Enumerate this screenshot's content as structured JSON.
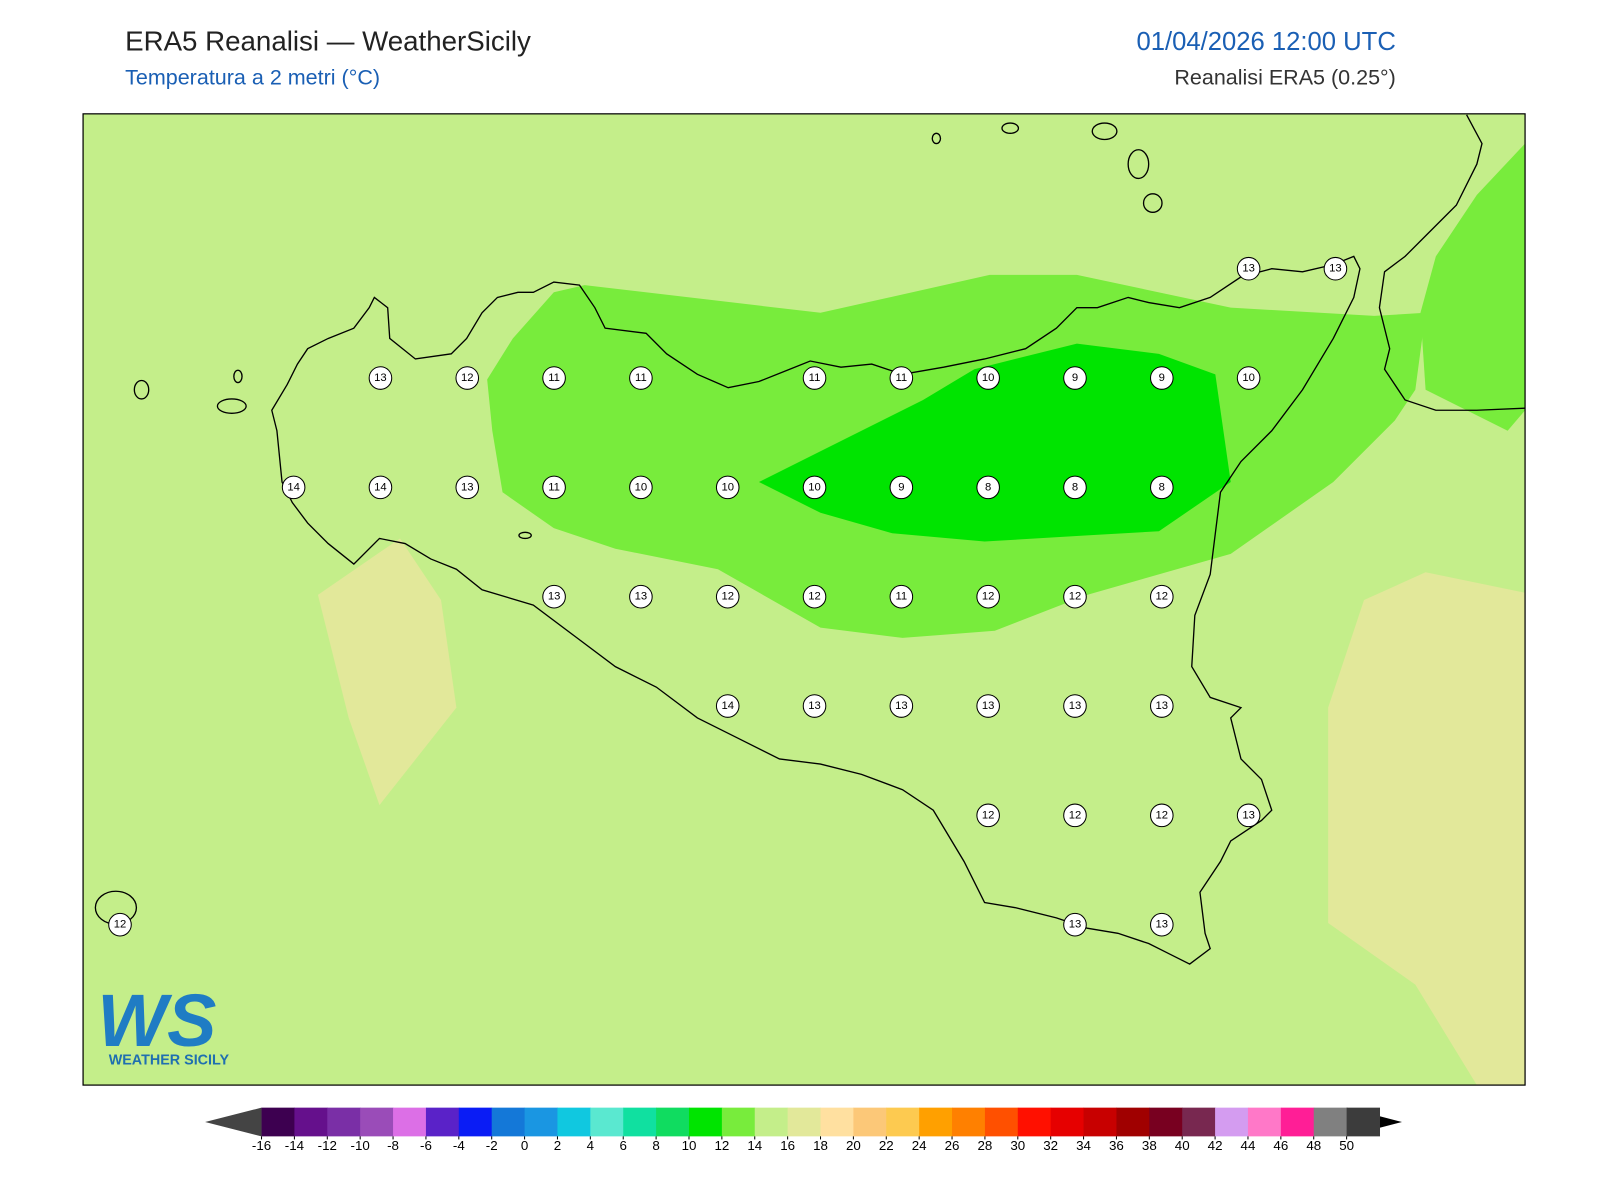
{
  "header": {
    "title": "ERA5 Reanalisi — WeatherSicily",
    "subtitle": "Temperatura a 2 metri (°C)",
    "valid_time": "01/04/2026 12:00 UTC",
    "source": "Reanalisi ERA5 (0.25°)"
  },
  "map": {
    "station_grid": [
      [
        null,
        null,
        null,
        null,
        null,
        null,
        null,
        null,
        null,
        null,
        null,
        null,
        null,
        13,
        13
      ],
      [
        null,
        null,
        null,
        13,
        12,
        11,
        11,
        null,
        11,
        11,
        10,
        9,
        9,
        10,
        null
      ],
      [
        null,
        null,
        14,
        14,
        13,
        11,
        10,
        10,
        10,
        9,
        8,
        8,
        8,
        null,
        null
      ],
      [
        null,
        null,
        null,
        null,
        null,
        13,
        13,
        12,
        12,
        11,
        12,
        12,
        12,
        null,
        null
      ],
      [
        null,
        null,
        null,
        null,
        null,
        null,
        null,
        14,
        13,
        13,
        13,
        13,
        13,
        null,
        null
      ],
      [
        null,
        null,
        null,
        null,
        null,
        null,
        null,
        null,
        null,
        null,
        12,
        12,
        12,
        13,
        null
      ],
      [
        12,
        null,
        null,
        null,
        null,
        null,
        null,
        null,
        null,
        null,
        null,
        13,
        13,
        null,
        null
      ]
    ]
  },
  "colorbar": {
    "ticks": [
      -16,
      -14,
      -12,
      -10,
      -8,
      -6,
      -4,
      -2,
      0,
      2,
      4,
      6,
      8,
      10,
      12,
      14,
      16,
      18,
      20,
      22,
      24,
      26,
      28,
      30,
      32,
      34,
      36,
      38,
      40,
      42,
      44,
      46,
      48,
      50
    ],
    "colors": [
      "#3d0050",
      "#65108c",
      "#7a2fa6",
      "#9a4cb8",
      "#dc6fe6",
      "#5a22c8",
      "#0a1cf5",
      "#1478d8",
      "#1a96e2",
      "#10c8e0",
      "#5ae8d0",
      "#10e0a0",
      "#10dc60",
      "#00e400",
      "#78ec3c",
      "#c4ee8a",
      "#e2e89a",
      "#ffe0a0",
      "#fcc878",
      "#fdca50",
      "#ffa000",
      "#ff8000",
      "#ff5000",
      "#ff1000",
      "#e60000",
      "#c80000",
      "#a00000",
      "#780020",
      "#782850",
      "#d49cf0",
      "#ff78c8",
      "#ff1e96",
      "#808080",
      "#3c3c3c"
    ],
    "under_color": "#444444",
    "over_color": "#000000"
  },
  "logo": {
    "mark": "WS",
    "text": "WEATHER SICILY"
  }
}
